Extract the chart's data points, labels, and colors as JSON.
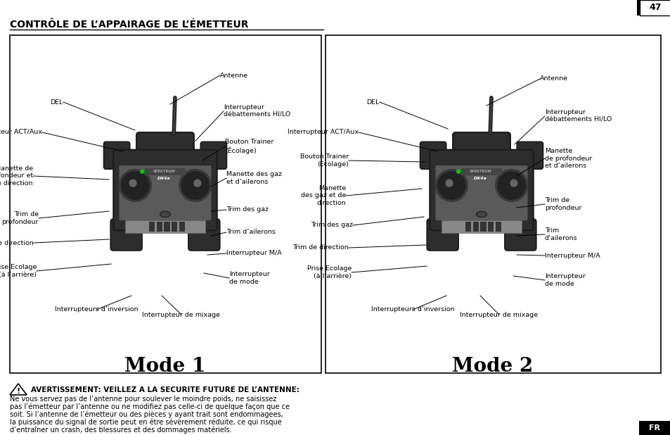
{
  "title": "CONTRÔLE DE L’APPAIRAGE DE L’ÉMETTEUR",
  "page_number": "47",
  "background": "#ffffff",
  "mode1_label": "Mode 1",
  "mode2_label": "Mode 2",
  "warning_title": "AVERTISSEMENT: VEILLEZ A LA SECURITE FUTURE DE L’ANTENNE:",
  "warning_text_lines": [
    "Ne vous servez pas de l’antenne pour soulever le moindre poids, ne saisissez",
    "pas l’émetteur par l’antenne ou ne modifiez pas celle-ci de quelque façon que ce",
    "soit. Si l’antenne de l’émetteur ou des pièces y ayant trait sont endommagees,",
    "la puissance du signal de sortie peut en être sévèrement réduite, ce qui risque",
    "d’entraîner un crash, des blessures et des dommages matériels."
  ],
  "fr_label": "FR"
}
